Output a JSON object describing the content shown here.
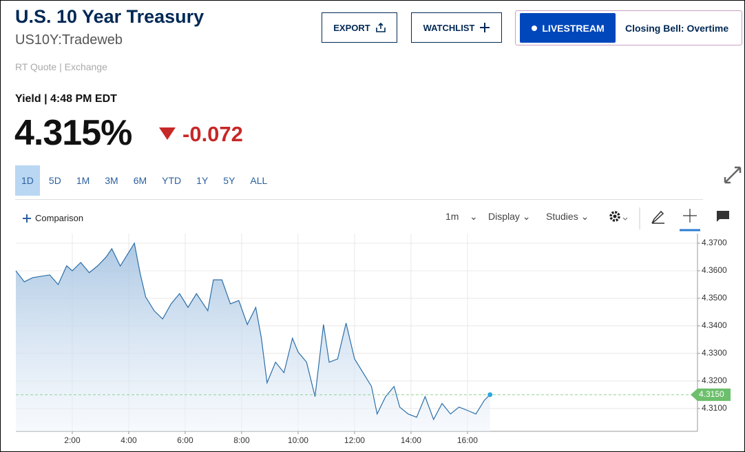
{
  "header": {
    "title": "U.S. 10 Year Treasury",
    "symbol": "US10Y:Tradeweb",
    "quote_source": "RT Quote | Exchange",
    "buttons": [
      "EXPORT",
      "WATCHLIST"
    ],
    "livestream": "LIVESTREAM",
    "live_show": "Closing Bell: Overtime"
  },
  "quote": {
    "yield_time": "Yield | 4:48 PM EDT",
    "price": "4.315%",
    "change": "-0.072"
  },
  "ranges": [
    "1D",
    "5D",
    "1M",
    "3M",
    "6M",
    "YTD",
    "1Y",
    "5Y",
    "ALL"
  ],
  "toolbar": {
    "comparison": "Comparison",
    "interval": "1m",
    "display": "Display",
    "studies": "Studies"
  },
  "chart_data": {
    "type": "area",
    "x": [
      0.0,
      0.3,
      0.6,
      0.9,
      1.2,
      1.5,
      1.8,
      2.0,
      2.3,
      2.6,
      2.9,
      3.2,
      3.4,
      3.7,
      4.0,
      4.2,
      4.4,
      4.6,
      4.9,
      5.2,
      5.5,
      5.8,
      6.1,
      6.4,
      6.8,
      7.0,
      7.3,
      7.6,
      7.9,
      8.2,
      8.5,
      8.7,
      8.9,
      9.2,
      9.5,
      9.8,
      10.0,
      10.3,
      10.6,
      10.9,
      11.1,
      11.4,
      11.7,
      12.0,
      12.3,
      12.6,
      12.8,
      13.1,
      13.4,
      13.6,
      13.9,
      14.2,
      14.5,
      14.8,
      15.1,
      15.4,
      15.7,
      16.0,
      16.3,
      16.6,
      16.8
    ],
    "series": [
      {
        "name": "US10Y",
        "color": "#2a6ea8",
        "values": [
          4.36,
          4.356,
          4.3575,
          4.358,
          4.3585,
          4.355,
          4.3618,
          4.36,
          4.363,
          4.3593,
          4.3618,
          4.365,
          4.368,
          4.3617,
          4.3667,
          4.37,
          4.3592,
          4.3505,
          4.3455,
          4.3425,
          4.348,
          4.3517,
          4.3467,
          4.3517,
          4.3455,
          4.3567,
          4.3567,
          4.348,
          4.3492,
          4.3405,
          4.3467,
          4.3355,
          4.3193,
          4.3268,
          4.323,
          4.3355,
          4.3305,
          4.3268,
          4.3143,
          4.3405,
          4.3268,
          4.328,
          4.341,
          4.328,
          4.323,
          4.318,
          4.308,
          4.3143,
          4.318,
          4.3105,
          4.308,
          4.3068,
          4.3143,
          4.306,
          4.3118,
          4.308,
          4.3105,
          4.3093,
          4.308,
          4.313,
          4.315
        ]
      }
    ],
    "last_value": {
      "value": 4.315,
      "label": "4.3150"
    },
    "xlim": [
      0,
      24.15
    ],
    "xticks": [
      {
        "value": 2,
        "label": "2:00"
      },
      {
        "value": 4,
        "label": "4:00"
      },
      {
        "value": 6,
        "label": "6:00"
      },
      {
        "value": 8,
        "label": "8:00"
      },
      {
        "value": 10,
        "label": "10:00"
      },
      {
        "value": 12,
        "label": "12:00"
      },
      {
        "value": 14,
        "label": "14:00"
      },
      {
        "value": 16,
        "label": "16:00"
      }
    ],
    "ylim": [
      4.3017,
      4.3735
    ],
    "yticks": [
      {
        "value": 4.31,
        "label": "4.3100"
      },
      {
        "value": 4.32,
        "label": "4.3200"
      },
      {
        "value": 4.33,
        "label": "4.3300"
      },
      {
        "value": 4.34,
        "label": "4.3400"
      },
      {
        "value": 4.35,
        "label": "4.3500"
      },
      {
        "value": 4.36,
        "label": "4.3600"
      },
      {
        "value": 4.37,
        "label": "4.3700"
      }
    ],
    "grid": true
  }
}
